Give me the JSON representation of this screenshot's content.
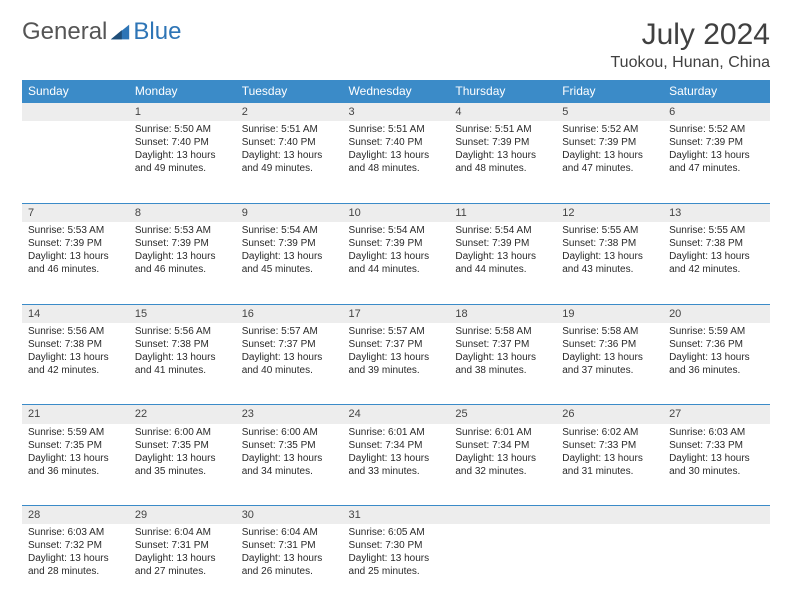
{
  "brand": {
    "part1": "General",
    "part2": "Blue"
  },
  "header": {
    "title": "July 2024",
    "location": "Tuokou, Hunan, China"
  },
  "weekdays": [
    "Sunday",
    "Monday",
    "Tuesday",
    "Wednesday",
    "Thursday",
    "Friday",
    "Saturday"
  ],
  "colors": {
    "header_bg": "#3b8bc8",
    "daynum_bg": "#ededed",
    "rule": "#3b8bc8"
  },
  "weeks": [
    {
      "nums": [
        "",
        "1",
        "2",
        "3",
        "4",
        "5",
        "6"
      ],
      "cells": [
        null,
        {
          "rise": "5:50 AM",
          "set": "7:40 PM",
          "dl": "13 hours and 49 minutes."
        },
        {
          "rise": "5:51 AM",
          "set": "7:40 PM",
          "dl": "13 hours and 49 minutes."
        },
        {
          "rise": "5:51 AM",
          "set": "7:40 PM",
          "dl": "13 hours and 48 minutes."
        },
        {
          "rise": "5:51 AM",
          "set": "7:39 PM",
          "dl": "13 hours and 48 minutes."
        },
        {
          "rise": "5:52 AM",
          "set": "7:39 PM",
          "dl": "13 hours and 47 minutes."
        },
        {
          "rise": "5:52 AM",
          "set": "7:39 PM",
          "dl": "13 hours and 47 minutes."
        }
      ]
    },
    {
      "nums": [
        "7",
        "8",
        "9",
        "10",
        "11",
        "12",
        "13"
      ],
      "cells": [
        {
          "rise": "5:53 AM",
          "set": "7:39 PM",
          "dl": "13 hours and 46 minutes."
        },
        {
          "rise": "5:53 AM",
          "set": "7:39 PM",
          "dl": "13 hours and 46 minutes."
        },
        {
          "rise": "5:54 AM",
          "set": "7:39 PM",
          "dl": "13 hours and 45 minutes."
        },
        {
          "rise": "5:54 AM",
          "set": "7:39 PM",
          "dl": "13 hours and 44 minutes."
        },
        {
          "rise": "5:54 AM",
          "set": "7:39 PM",
          "dl": "13 hours and 44 minutes."
        },
        {
          "rise": "5:55 AM",
          "set": "7:38 PM",
          "dl": "13 hours and 43 minutes."
        },
        {
          "rise": "5:55 AM",
          "set": "7:38 PM",
          "dl": "13 hours and 42 minutes."
        }
      ]
    },
    {
      "nums": [
        "14",
        "15",
        "16",
        "17",
        "18",
        "19",
        "20"
      ],
      "cells": [
        {
          "rise": "5:56 AM",
          "set": "7:38 PM",
          "dl": "13 hours and 42 minutes."
        },
        {
          "rise": "5:56 AM",
          "set": "7:38 PM",
          "dl": "13 hours and 41 minutes."
        },
        {
          "rise": "5:57 AM",
          "set": "7:37 PM",
          "dl": "13 hours and 40 minutes."
        },
        {
          "rise": "5:57 AM",
          "set": "7:37 PM",
          "dl": "13 hours and 39 minutes."
        },
        {
          "rise": "5:58 AM",
          "set": "7:37 PM",
          "dl": "13 hours and 38 minutes."
        },
        {
          "rise": "5:58 AM",
          "set": "7:36 PM",
          "dl": "13 hours and 37 minutes."
        },
        {
          "rise": "5:59 AM",
          "set": "7:36 PM",
          "dl": "13 hours and 36 minutes."
        }
      ]
    },
    {
      "nums": [
        "21",
        "22",
        "23",
        "24",
        "25",
        "26",
        "27"
      ],
      "cells": [
        {
          "rise": "5:59 AM",
          "set": "7:35 PM",
          "dl": "13 hours and 36 minutes."
        },
        {
          "rise": "6:00 AM",
          "set": "7:35 PM",
          "dl": "13 hours and 35 minutes."
        },
        {
          "rise": "6:00 AM",
          "set": "7:35 PM",
          "dl": "13 hours and 34 minutes."
        },
        {
          "rise": "6:01 AM",
          "set": "7:34 PM",
          "dl": "13 hours and 33 minutes."
        },
        {
          "rise": "6:01 AM",
          "set": "7:34 PM",
          "dl": "13 hours and 32 minutes."
        },
        {
          "rise": "6:02 AM",
          "set": "7:33 PM",
          "dl": "13 hours and 31 minutes."
        },
        {
          "rise": "6:03 AM",
          "set": "7:33 PM",
          "dl": "13 hours and 30 minutes."
        }
      ]
    },
    {
      "nums": [
        "28",
        "29",
        "30",
        "31",
        "",
        "",
        ""
      ],
      "cells": [
        {
          "rise": "6:03 AM",
          "set": "7:32 PM",
          "dl": "13 hours and 28 minutes."
        },
        {
          "rise": "6:04 AM",
          "set": "7:31 PM",
          "dl": "13 hours and 27 minutes."
        },
        {
          "rise": "6:04 AM",
          "set": "7:31 PM",
          "dl": "13 hours and 26 minutes."
        },
        {
          "rise": "6:05 AM",
          "set": "7:30 PM",
          "dl": "13 hours and 25 minutes."
        },
        null,
        null,
        null
      ]
    }
  ],
  "labels": {
    "sunrise": "Sunrise: ",
    "sunset": "Sunset: ",
    "daylight": "Daylight: "
  }
}
